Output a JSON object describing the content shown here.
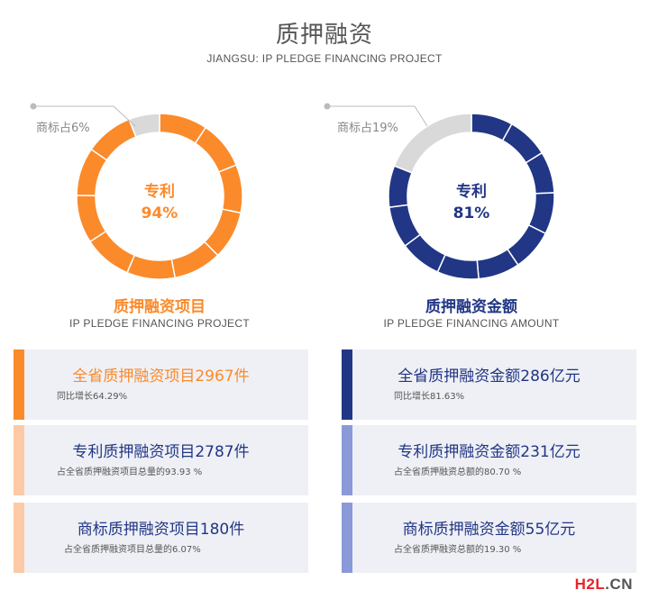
{
  "header": {
    "title": "质押融资",
    "subtitle": "JIANGSU: IP PLEDGE FINANCING PROJECT"
  },
  "colors": {
    "orange": "#fb8a2b",
    "orange_light": "#fccaa6",
    "navy": "#213685",
    "navy_light": "#8a99d8",
    "gray": "#d9d9d9"
  },
  "chart_data": [
    {
      "type": "pie",
      "center_label": "专利",
      "center_value": "94%",
      "slices": [
        {
          "name": "专利",
          "value": 94
        },
        {
          "name": "商标",
          "value": 6
        }
      ],
      "annotation": "商标占6%",
      "title": "质押融资项目",
      "subtitle": "IP PLEDGE FINANCING PROJECT"
    },
    {
      "type": "pie",
      "center_label": "专利",
      "center_value": "81%",
      "slices": [
        {
          "name": "专利",
          "value": 81
        },
        {
          "name": "商标",
          "value": 19
        }
      ],
      "annotation": "商标占19%",
      "title": "质押融资金额",
      "subtitle": "IP PLEDGE FINANCING AMOUNT"
    }
  ],
  "cards_left": [
    {
      "main": "全省质押融资项目2967件",
      "sub": "同比增长64.29%"
    },
    {
      "main": "专利质押融资项目2787件",
      "sub": "占全省质押融资项目总量的93.93 %"
    },
    {
      "main": "商标质押融资项目180件",
      "sub": "占全省质押融资项目总量的6.07%"
    }
  ],
  "cards_right": [
    {
      "main": "全省质押融资金额286亿元",
      "sub": "同比增长81.63%"
    },
    {
      "main": "专利质押融资金额231亿元",
      "sub": "占全省质押融资总额的80.70 %"
    },
    {
      "main": "商标质押融资金额55亿元",
      "sub": "占全省质押融资总额的19.30 %"
    }
  ],
  "brand": {
    "h2l": "H2L",
    "cn": ".CN"
  }
}
